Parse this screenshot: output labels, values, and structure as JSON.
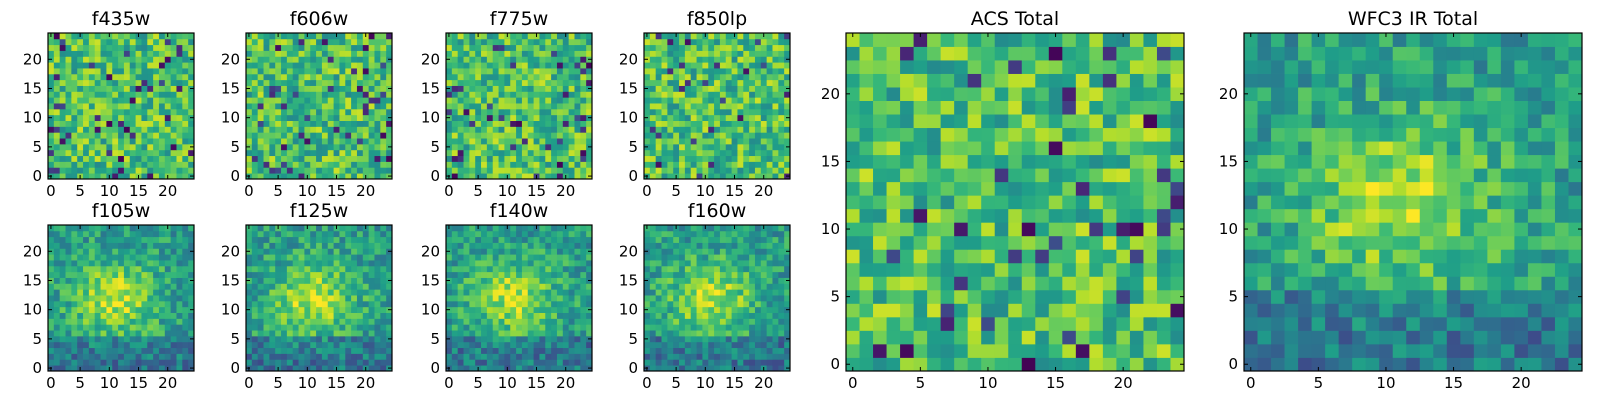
{
  "figure": {
    "background": "#ffffff"
  },
  "chart_data": [
    {
      "type": "heatmap",
      "title": "f435w",
      "xlim": [
        -0.5,
        24.5
      ],
      "ylim": [
        -0.5,
        24.5
      ],
      "xticks": [
        0,
        5,
        10,
        15,
        20
      ],
      "yticks": [
        0,
        5,
        10,
        15,
        20
      ],
      "grid": false,
      "colormap": "viridis",
      "pattern": "noise",
      "seed": 11
    },
    {
      "type": "heatmap",
      "title": "f606w",
      "xlim": [
        -0.5,
        24.5
      ],
      "ylim": [
        -0.5,
        24.5
      ],
      "xticks": [
        0,
        5,
        10,
        15,
        20
      ],
      "yticks": [
        0,
        5,
        10,
        15,
        20
      ],
      "grid": false,
      "colormap": "viridis",
      "pattern": "noise",
      "seed": 23
    },
    {
      "type": "heatmap",
      "title": "f775w",
      "xlim": [
        -0.5,
        24.5
      ],
      "ylim": [
        -0.5,
        24.5
      ],
      "xticks": [
        0,
        5,
        10,
        15,
        20
      ],
      "yticks": [
        0,
        5,
        10,
        15,
        20
      ],
      "grid": false,
      "colormap": "viridis",
      "pattern": "noise",
      "seed": 37
    },
    {
      "type": "heatmap",
      "title": "f850lp",
      "xlim": [
        -0.5,
        24.5
      ],
      "ylim": [
        -0.5,
        24.5
      ],
      "xticks": [
        0,
        5,
        10,
        15,
        20
      ],
      "yticks": [
        0,
        5,
        10,
        15,
        20
      ],
      "grid": false,
      "colormap": "viridis",
      "pattern": "noise",
      "seed": 41
    },
    {
      "type": "heatmap",
      "title": "f105w",
      "xlim": [
        -0.5,
        24.5
      ],
      "ylim": [
        -0.5,
        24.5
      ],
      "xticks": [
        0,
        5,
        10,
        15,
        20
      ],
      "yticks": [
        0,
        5,
        10,
        15,
        20
      ],
      "grid": false,
      "colormap": "viridis",
      "pattern": "blob",
      "seed": 53
    },
    {
      "type": "heatmap",
      "title": "f125w",
      "xlim": [
        -0.5,
        24.5
      ],
      "ylim": [
        -0.5,
        24.5
      ],
      "xticks": [
        0,
        5,
        10,
        15,
        20
      ],
      "yticks": [
        0,
        5,
        10,
        15,
        20
      ],
      "grid": false,
      "colormap": "viridis",
      "pattern": "blob",
      "seed": 67
    },
    {
      "type": "heatmap",
      "title": "f140w",
      "xlim": [
        -0.5,
        24.5
      ],
      "ylim": [
        -0.5,
        24.5
      ],
      "xticks": [
        0,
        5,
        10,
        15,
        20
      ],
      "yticks": [
        0,
        5,
        10,
        15,
        20
      ],
      "grid": false,
      "colormap": "viridis",
      "pattern": "blob",
      "seed": 71
    },
    {
      "type": "heatmap",
      "title": "f160w",
      "xlim": [
        -0.5,
        24.5
      ],
      "ylim": [
        -0.5,
        24.5
      ],
      "xticks": [
        0,
        5,
        10,
        15,
        20
      ],
      "yticks": [
        0,
        5,
        10,
        15,
        20
      ],
      "grid": false,
      "colormap": "viridis",
      "pattern": "blob",
      "seed": 83
    },
    {
      "type": "heatmap",
      "title": "ACS Total",
      "xlim": [
        -0.5,
        24.5
      ],
      "ylim": [
        -0.5,
        24.5
      ],
      "xticks": [
        0,
        5,
        10,
        15,
        20
      ],
      "yticks": [
        0,
        5,
        10,
        15,
        20
      ],
      "grid": false,
      "colormap": "viridis",
      "pattern": "noise",
      "seed": 97
    },
    {
      "type": "heatmap",
      "title": "WFC3 IR Total",
      "xlim": [
        -0.5,
        24.5
      ],
      "ylim": [
        -0.5,
        24.5
      ],
      "xticks": [
        0,
        5,
        10,
        15,
        20
      ],
      "yticks": [
        0,
        5,
        10,
        15,
        20
      ],
      "grid": false,
      "colormap": "viridis",
      "pattern": "blob",
      "seed": 109
    }
  ]
}
